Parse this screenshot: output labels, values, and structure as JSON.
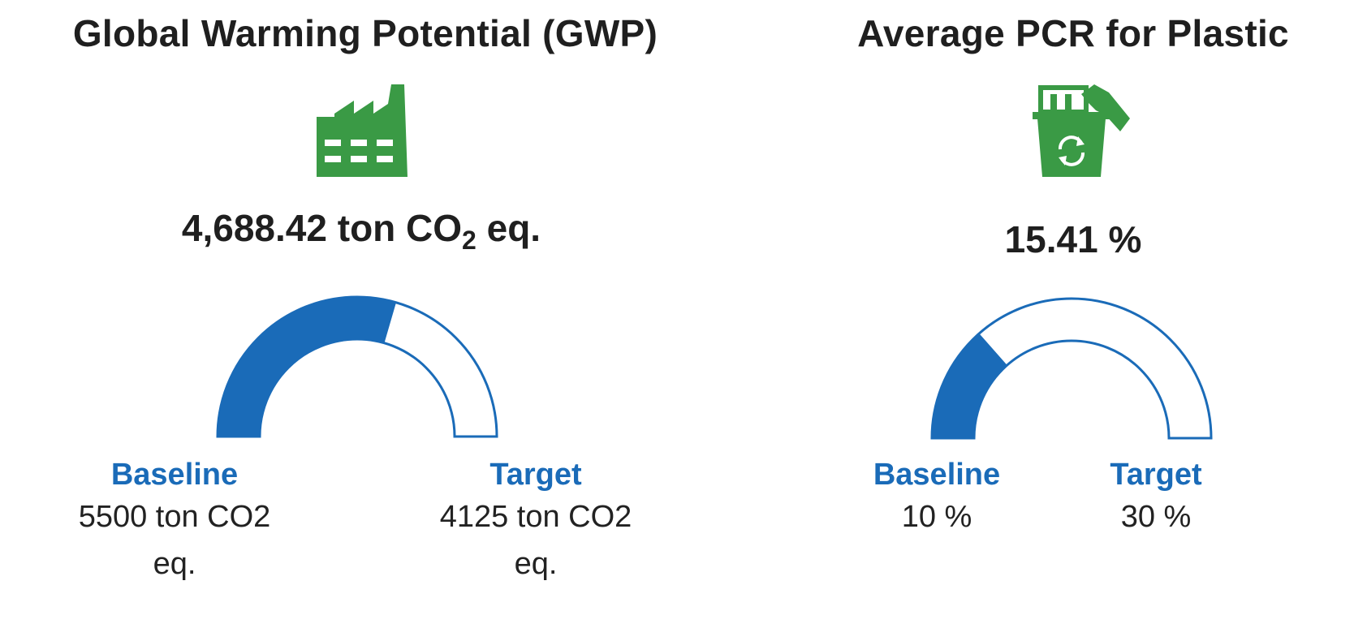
{
  "gwp": {
    "title": "Global Warming Potential (GWP)",
    "icon": "factory-icon",
    "value_main": "4,688.42 ton CO",
    "value_sub": "2",
    "value_unit": " eq.",
    "gauge_fraction": 0.59,
    "baseline_label": "Baseline",
    "baseline_value": "5500 ton CO2 eq.",
    "target_label": "Target",
    "target_value": "4125 ton CO2 eq."
  },
  "pcr": {
    "title": "Average PCR for Plastic",
    "icon": "recycle-bin-icon",
    "value": "15.41 %",
    "gauge_fraction": 0.27,
    "baseline_label": "Baseline",
    "baseline_value": "10 %",
    "target_label": "Target",
    "target_value": "30 %"
  },
  "colors": {
    "gauge_fill": "#1a6bb8",
    "icon_green": "#3a9a45",
    "label_blue": "#1a6bb8"
  }
}
